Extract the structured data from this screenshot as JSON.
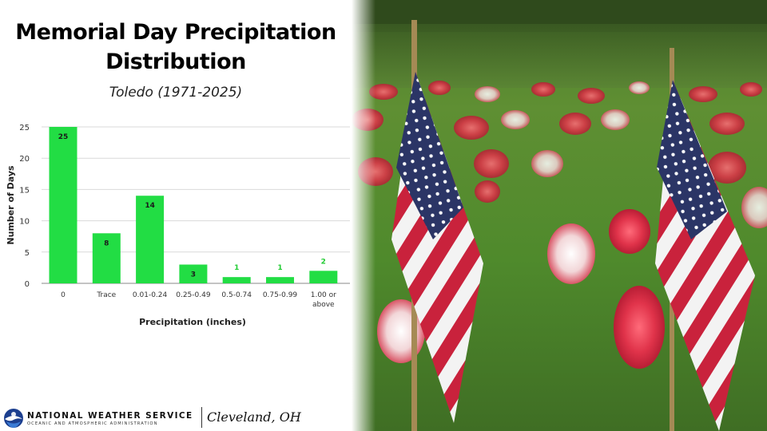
{
  "header": {
    "title_line1": "Memorial Day Precipitation",
    "title_line2": "Distribution",
    "subtitle": "Toledo (1971-2025)"
  },
  "chart_data": {
    "type": "bar",
    "categories": [
      "0",
      "Trace",
      "0.01-0.24",
      "0.25-0.49",
      "0.5-0.74",
      "0.75-0.99",
      "1.00 or above"
    ],
    "values": [
      25,
      8,
      14,
      3,
      1,
      1,
      2
    ],
    "xlabel": "Precipitation (inches)",
    "ylabel": "Number of Days",
    "ylim": [
      0,
      25
    ],
    "yticks": [
      0,
      5,
      10,
      15,
      20,
      25
    ],
    "grid": true,
    "bar_color": "#22dd44",
    "label_color_inside": "#1a1a1a",
    "label_color_outside": "#22cc33",
    "legend": "none"
  },
  "footer": {
    "agency": "NATIONAL WEATHER SERVICE",
    "agency_sub": "OCEANIC AND ATMOSPHERIC ADMINISTRATION",
    "office": "Cleveland, OH"
  },
  "photo": {
    "description_icon": "flag-icon"
  }
}
